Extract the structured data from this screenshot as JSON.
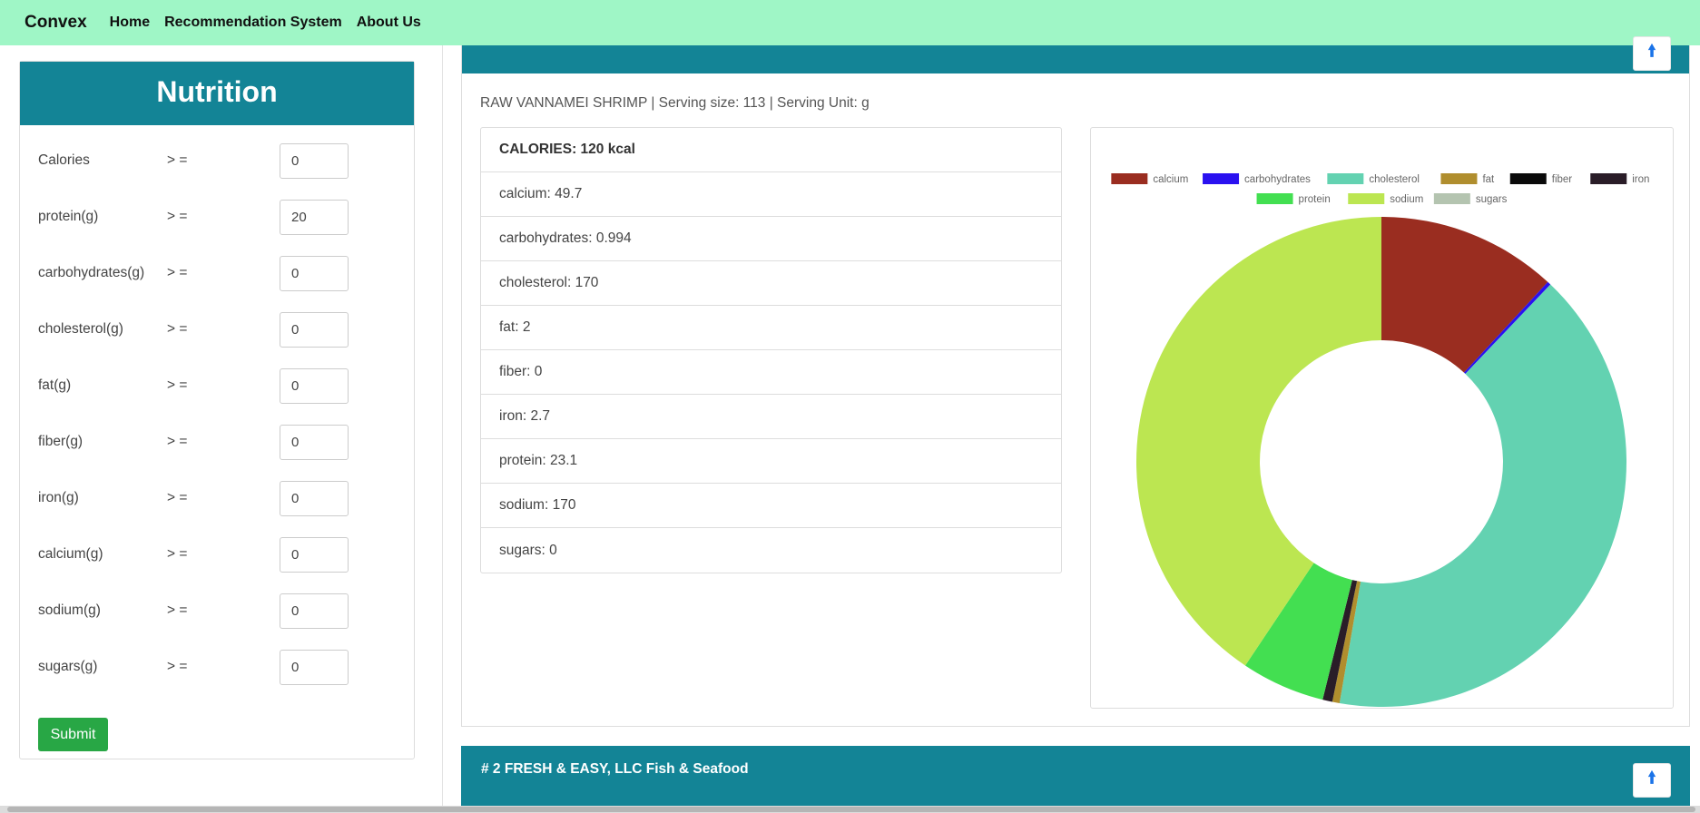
{
  "nav": {
    "brand": "Convex",
    "links": [
      "Home",
      "Recommendation System",
      "About Us"
    ]
  },
  "form": {
    "title": "Nutrition",
    "operator": "> =",
    "fields": [
      {
        "label": "Calories",
        "value": "0"
      },
      {
        "label": "protein(g)",
        "value": "20"
      },
      {
        "label": "carbohydrates(g)",
        "value": "0"
      },
      {
        "label": "cholesterol(g)",
        "value": "0"
      },
      {
        "label": "fat(g)",
        "value": "0"
      },
      {
        "label": "fiber(g)",
        "value": "0"
      },
      {
        "label": "iron(g)",
        "value": "0"
      },
      {
        "label": "calcium(g)",
        "value": "0"
      },
      {
        "label": "sodium(g)",
        "value": "0"
      },
      {
        "label": "sugars(g)",
        "value": "0"
      }
    ],
    "submit_label": "Submit"
  },
  "result": {
    "subtitle": "RAW VANNAMEI SHRIMP | Serving size: 113 | Serving Unit: g",
    "calories": "CALORIES: 120 kcal",
    "items": [
      "calcium: 49.7",
      "carbohydrates: 0.994",
      "cholesterol: 170",
      "fat: 2",
      "fiber: 0",
      "iron: 2.7",
      "protein: 23.1",
      "sodium: 170",
      "sugars: 0"
    ]
  },
  "chart_data": {
    "type": "pie",
    "labels": [
      "calcium",
      "carbohydrates",
      "cholesterol",
      "fat",
      "fiber",
      "iron",
      "protein",
      "sodium",
      "sugars"
    ],
    "values": [
      49.7,
      0.994,
      170,
      2,
      0,
      2.7,
      23.1,
      170,
      0
    ],
    "colors": [
      "#9a2d20",
      "#2a11f0",
      "#63d2b1",
      "#b08e2e",
      "#0a0a0a",
      "#2a1d28",
      "#43df51",
      "#bce651",
      "#b4c4b0"
    ],
    "legend_position": "top"
  },
  "card2": {
    "title": "# 2 FRESH & EASY, LLC Fish & Seafood"
  },
  "icons": {
    "scroll_top": "arrow-up-icon"
  }
}
